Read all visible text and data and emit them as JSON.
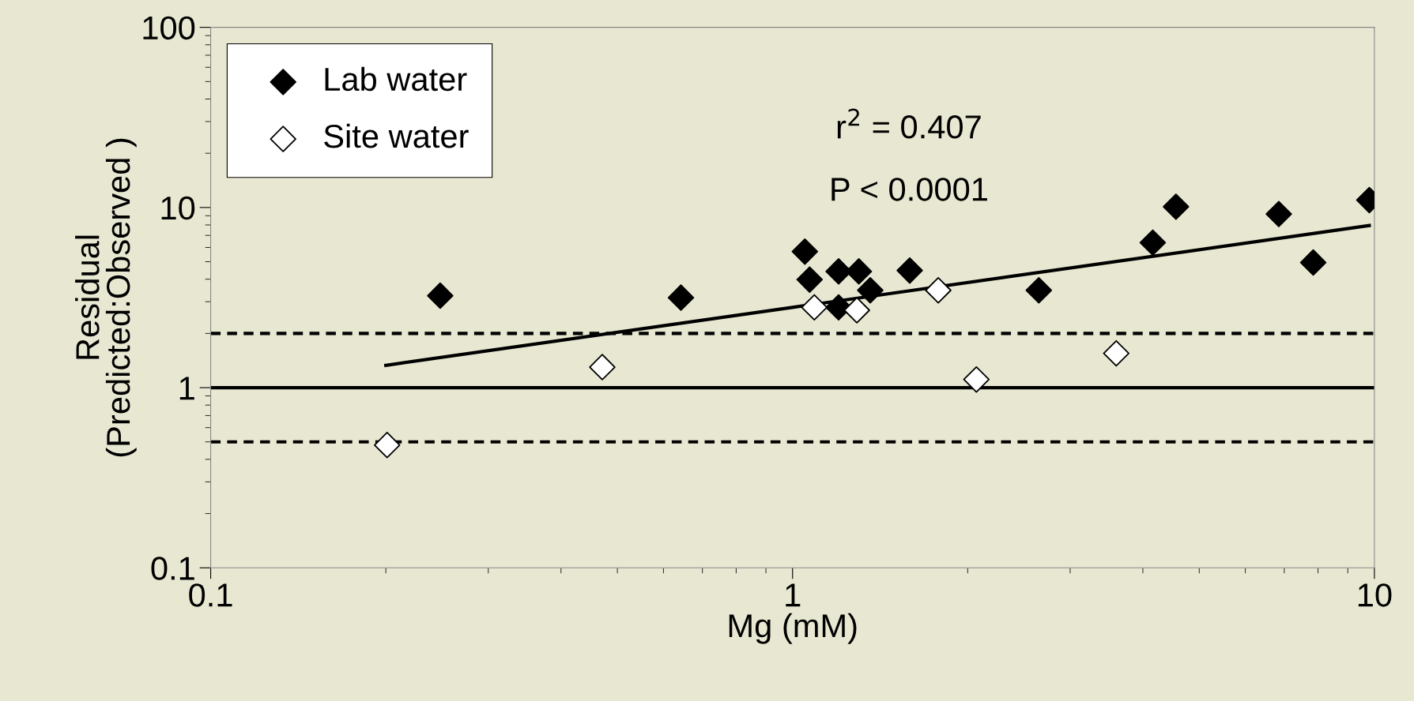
{
  "chart_data": {
    "type": "scatter",
    "xlabel": "Mg (mM)",
    "ylabel": "Residual\n(Predicted:Observed )",
    "log": "xy",
    "xlim": [
      0.1,
      10
    ],
    "xticks": [
      0.1,
      1,
      10
    ],
    "ylim": [
      0.1,
      100
    ],
    "yticks": [
      0.1,
      1,
      10,
      100
    ],
    "grid": false,
    "legend": "top left",
    "series": [
      {
        "name": "Lab water",
        "color": "#000000",
        "marker": "diamond",
        "x": [
          0.248,
          0.643,
          1.05,
          1.07,
          1.2,
          1.2,
          1.3,
          1.36,
          1.59,
          2.65,
          4.16,
          4.56,
          6.85,
          7.85,
          9.8
        ],
        "values": [
          3.24,
          3.16,
          5.69,
          3.98,
          2.79,
          4.42,
          4.42,
          3.47,
          4.47,
          3.47,
          6.38,
          10.1,
          9.2,
          4.95,
          11.0
        ]
      },
      {
        "name": "Site water",
        "color": "#ffffff",
        "marker": "diamond",
        "x": [
          0.201,
          0.471,
          1.09,
          1.29,
          1.78,
          2.07,
          3.6
        ],
        "values": [
          0.48,
          1.3,
          2.79,
          2.69,
          3.47,
          1.11,
          1.55
        ]
      },
      {
        "type": "line",
        "color": "#000000",
        "marker": "none",
        "x": [
          0.2,
          1,
          9.8
        ],
        "values": [
          1.33,
          2.79,
          7.94
        ]
      }
    ],
    "ref_lines": [
      {
        "axis": "y",
        "value": 2,
        "line_style": "dashed",
        "color": "#000000"
      },
      {
        "axis": "y",
        "value": 1,
        "line_style": "solid",
        "color": "#000000"
      },
      {
        "axis": "y",
        "value": 0.5,
        "line_style": "dashed",
        "color": "#000000"
      }
    ],
    "annotations": [
      "r$^{2}$ = 0.407",
      "P < 0.0001"
    ]
  }
}
